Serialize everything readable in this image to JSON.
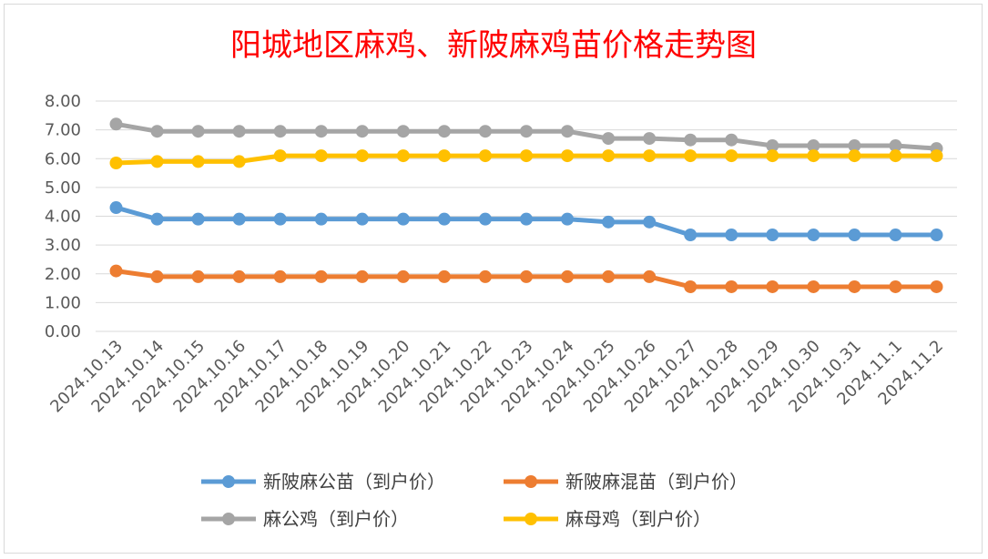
{
  "chart_data": {
    "type": "line",
    "title": "阳城地区麻鸡、新陂麻鸡苗价格走势图",
    "xlabel": "",
    "ylabel": "",
    "ylim": [
      0,
      8
    ],
    "yticks": [
      "0.00",
      "1.00",
      "2.00",
      "3.00",
      "4.00",
      "5.00",
      "6.00",
      "7.00",
      "8.00"
    ],
    "grid": true,
    "legend_position": "bottom",
    "categories": [
      "2024.10.13",
      "2024.10.14",
      "2024.10.15",
      "2024.10.16",
      "2024.10.17",
      "2024.10.18",
      "2024.10.19",
      "2024.10.20",
      "2024.10.21",
      "2024.10.22",
      "2024.10.23",
      "2024.10.24",
      "2024.10.25",
      "2024.10.26",
      "2024.10.27",
      "2024.10.28",
      "2024.10.29",
      "2024.10.30",
      "2024.10.31",
      "2024.11.1",
      "2024.11.2"
    ],
    "series": [
      {
        "name": "新陂麻公苗（到户价）",
        "color": "#5b9bd5",
        "values": [
          4.3,
          3.9,
          3.9,
          3.9,
          3.9,
          3.9,
          3.9,
          3.9,
          3.9,
          3.9,
          3.9,
          3.9,
          3.8,
          3.8,
          3.35,
          3.35,
          3.35,
          3.35,
          3.35,
          3.35,
          3.35
        ]
      },
      {
        "name": "新陂麻混苗（到户价）",
        "color": "#ed7d31",
        "values": [
          2.1,
          1.9,
          1.9,
          1.9,
          1.9,
          1.9,
          1.9,
          1.9,
          1.9,
          1.9,
          1.9,
          1.9,
          1.9,
          1.9,
          1.55,
          1.55,
          1.55,
          1.55,
          1.55,
          1.55,
          1.55
        ]
      },
      {
        "name": "麻公鸡（到户价）",
        "color": "#a5a5a5",
        "values": [
          7.2,
          6.95,
          6.95,
          6.95,
          6.95,
          6.95,
          6.95,
          6.95,
          6.95,
          6.95,
          6.95,
          6.95,
          6.7,
          6.7,
          6.65,
          6.65,
          6.45,
          6.45,
          6.45,
          6.45,
          6.35
        ]
      },
      {
        "name": "麻母鸡（到户价）",
        "color": "#ffc000",
        "values": [
          5.85,
          5.9,
          5.9,
          5.9,
          6.1,
          6.1,
          6.1,
          6.1,
          6.1,
          6.1,
          6.1,
          6.1,
          6.1,
          6.1,
          6.1,
          6.1,
          6.1,
          6.1,
          6.1,
          6.1,
          6.1
        ]
      }
    ]
  }
}
